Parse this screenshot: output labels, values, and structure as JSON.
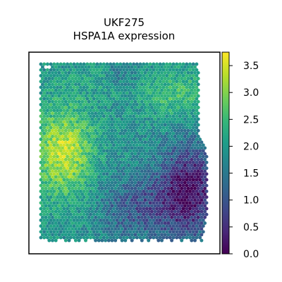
{
  "chart_data": {
    "type": "heatmap",
    "subtype": "spatial-hexbin",
    "title_lines": [
      "UKF275",
      "HSPA1A expression"
    ],
    "xlabel": "",
    "ylabel": "",
    "colormap": "viridis",
    "colorbar": {
      "min": 0.0,
      "max": 3.75,
      "ticks": [
        0.0,
        0.5,
        1.0,
        1.5,
        2.0,
        2.5,
        3.0,
        3.5
      ],
      "tick_labels": [
        "0.0",
        "0.5",
        "1.0",
        "1.5",
        "2.0",
        "2.5",
        "3.0",
        "3.5"
      ]
    },
    "grid": false,
    "regions": [
      {
        "area": "left-middle",
        "level": "high",
        "approx_value": 3.2
      },
      {
        "area": "upper-center",
        "level": "medium",
        "approx_value": 2.0
      },
      {
        "area": "upper-right",
        "level": "medium-high",
        "approx_value": 2.6
      },
      {
        "area": "lower-center",
        "level": "low-medium",
        "approx_value": 1.0
      },
      {
        "area": "lower-right",
        "level": "low",
        "approx_value": 0.3
      }
    ]
  },
  "colors": {
    "frame": "#000000",
    "background": "#ffffff",
    "viridis": [
      "#440154",
      "#482878",
      "#3e4989",
      "#31688e",
      "#26828e",
      "#1f9e89",
      "#35b779",
      "#6ece58",
      "#b5de2b",
      "#fde725"
    ]
  }
}
